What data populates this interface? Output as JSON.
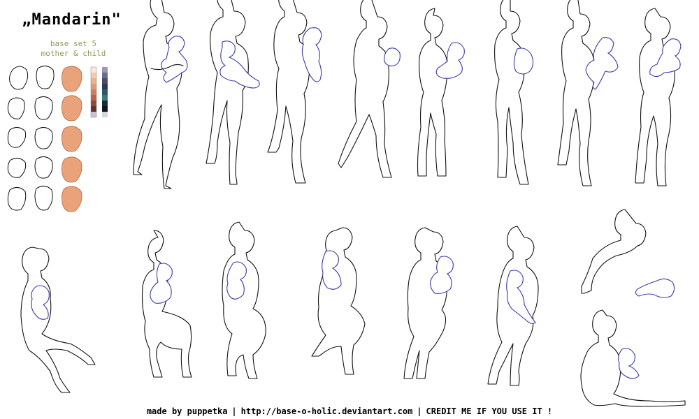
{
  "header": {
    "title": "„Mandarin\"",
    "subtitle_line1": "base set 5",
    "subtitle_line2": "mother & child"
  },
  "palette": {
    "colors": [
      "#fde9dc",
      "#f6c9ae",
      "#eeb08e",
      "#e39a78",
      "#d07d5c",
      "#b8634a",
      "#8d4a3a",
      "#5c3226",
      "#c9c0d6",
      "#9d96b4",
      "#6e6c8c",
      "#4d4b66",
      "#2c3a5a",
      "#2b5b6a",
      "#3a7a7a",
      "#1b2a3a",
      "#0d1620",
      "#cfd8e0"
    ]
  },
  "footer": {
    "credit_author": "made by puppetka",
    "credit_url": "http://base-o-holic.deviantart.com",
    "credit_note": "CREDIT ME IF YOU USE IT !"
  }
}
